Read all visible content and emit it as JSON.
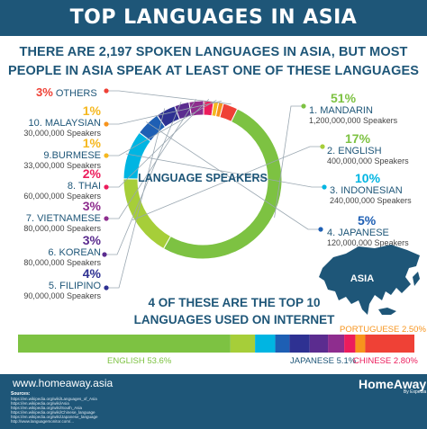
{
  "header": {
    "title": "TOP LANGUAGES IN ASIA"
  },
  "subtitle": {
    "line1": "THERE ARE 2,197 SPOKEN LANGUAGES IN ASIA, BUT MOST",
    "line2": "PEOPLE IN ASIA SPEAK AT LEAST ONE OF THESE LANGUAGES"
  },
  "chart_data": [
    {
      "type": "pie",
      "title": "LANGUAGE SPEAKERS",
      "slices": [
        {
          "label": "1. MANDARIN",
          "value": 51,
          "pct_label": "51%",
          "speakers": "1,200,000,000 Speakers",
          "color": "#7dc242"
        },
        {
          "label": "2. ENGLISH",
          "value": 17,
          "pct_label": "17%",
          "speakers": "400,000,000 Speakers",
          "color": "#a6ce39"
        },
        {
          "label": "3. INDONESIAN",
          "value": 10,
          "pct_label": "10%",
          "speakers": "240,000,000 Speakers",
          "color": "#00b5e2"
        },
        {
          "label": "4. JAPANESE",
          "value": 5,
          "pct_label": "5%",
          "speakers": "120,000,000 Speakers",
          "color": "#1e5fb4"
        },
        {
          "label": "5. FILIPINO",
          "value": 4,
          "pct_label": "4%",
          "speakers": "90,000,000 Speakers",
          "color": "#2e3192"
        },
        {
          "label": "6. KOREAN",
          "value": 3,
          "pct_label": "3%",
          "speakers": "80,000,000 Speakers",
          "color": "#5b2c8f"
        },
        {
          "label": "7. VIETNAMESE",
          "value": 3,
          "pct_label": "3%",
          "speakers": "80,000,000 Speakers",
          "color": "#8e2d8e"
        },
        {
          "label": "8. THAI",
          "value": 2,
          "pct_label": "2%",
          "speakers": "60,000,000 Speakers",
          "color": "#ec1c5c"
        },
        {
          "label": "9.BURMESE",
          "value": 1,
          "pct_label": "1%",
          "speakers": "33,000,000 Speakers",
          "color": "#f5b820"
        },
        {
          "label": "10. MALAYSIAN",
          "value": 1,
          "pct_label": "1%",
          "speakers": "30,000,000 Speakers",
          "color": "#f7941d"
        },
        {
          "label": "OTHERS",
          "value": 3,
          "pct_label": "3%",
          "speakers": "",
          "color": "#ef4136"
        }
      ]
    },
    {
      "type": "bar",
      "title": "4 OF THESE ARE THE TOP 10 LANGUAGES USED ON INTERNET",
      "orientation": "horizontal-stacked",
      "total": 100,
      "segments": [
        {
          "label": "ENGLISH 53.6%",
          "value": 53.6,
          "color": "#7dc242"
        },
        {
          "label": "",
          "value": 6.2,
          "color": "#a6ce39"
        },
        {
          "label": "",
          "value": 5.1,
          "color": "#00b5e2"
        },
        {
          "label": "",
          "value": 3.6,
          "color": "#1e5fb4"
        },
        {
          "label": "JAPANESE 5.1%",
          "value": 5.1,
          "color": "#2e3192"
        },
        {
          "label": "",
          "value": 4.6,
          "color": "#5b2c8f"
        },
        {
          "label": "",
          "value": 4.1,
          "color": "#8e2d8e"
        },
        {
          "label": "CHINESE 2.80%",
          "value": 2.8,
          "color": "#ec1c5c"
        },
        {
          "label": "PORTUGUESE 2.50%",
          "value": 2.5,
          "color": "#f7941d"
        },
        {
          "label": "",
          "value": 12.4,
          "color": "#ef4136"
        }
      ]
    }
  ],
  "internet": {
    "line1": "4 OF THESE ARE THE TOP 10",
    "line2": "LANGUAGES USED ON INTERNET"
  },
  "map": {
    "label": "ASIA",
    "color": "#1e5678"
  },
  "footer": {
    "website": "www.homeaway.asia",
    "sources_title": "Sources:",
    "sources": [
      "https://en.wikipedia.org/wiki/Languages_of_Asia",
      "https://en.wikipedia.org/wiki/Asia",
      "https://en.wikipedia.org/wiki/South_Asia",
      "https://en.wikipedia.org/wiki/Chinese_language",
      "https://en.wikipedia.org/wiki/Japanese_language",
      "http://www.languagemonitor.com/..."
    ],
    "logo": "HomeAway",
    "logo_sub": "By Expedia",
    "bg": "#1e5678"
  }
}
